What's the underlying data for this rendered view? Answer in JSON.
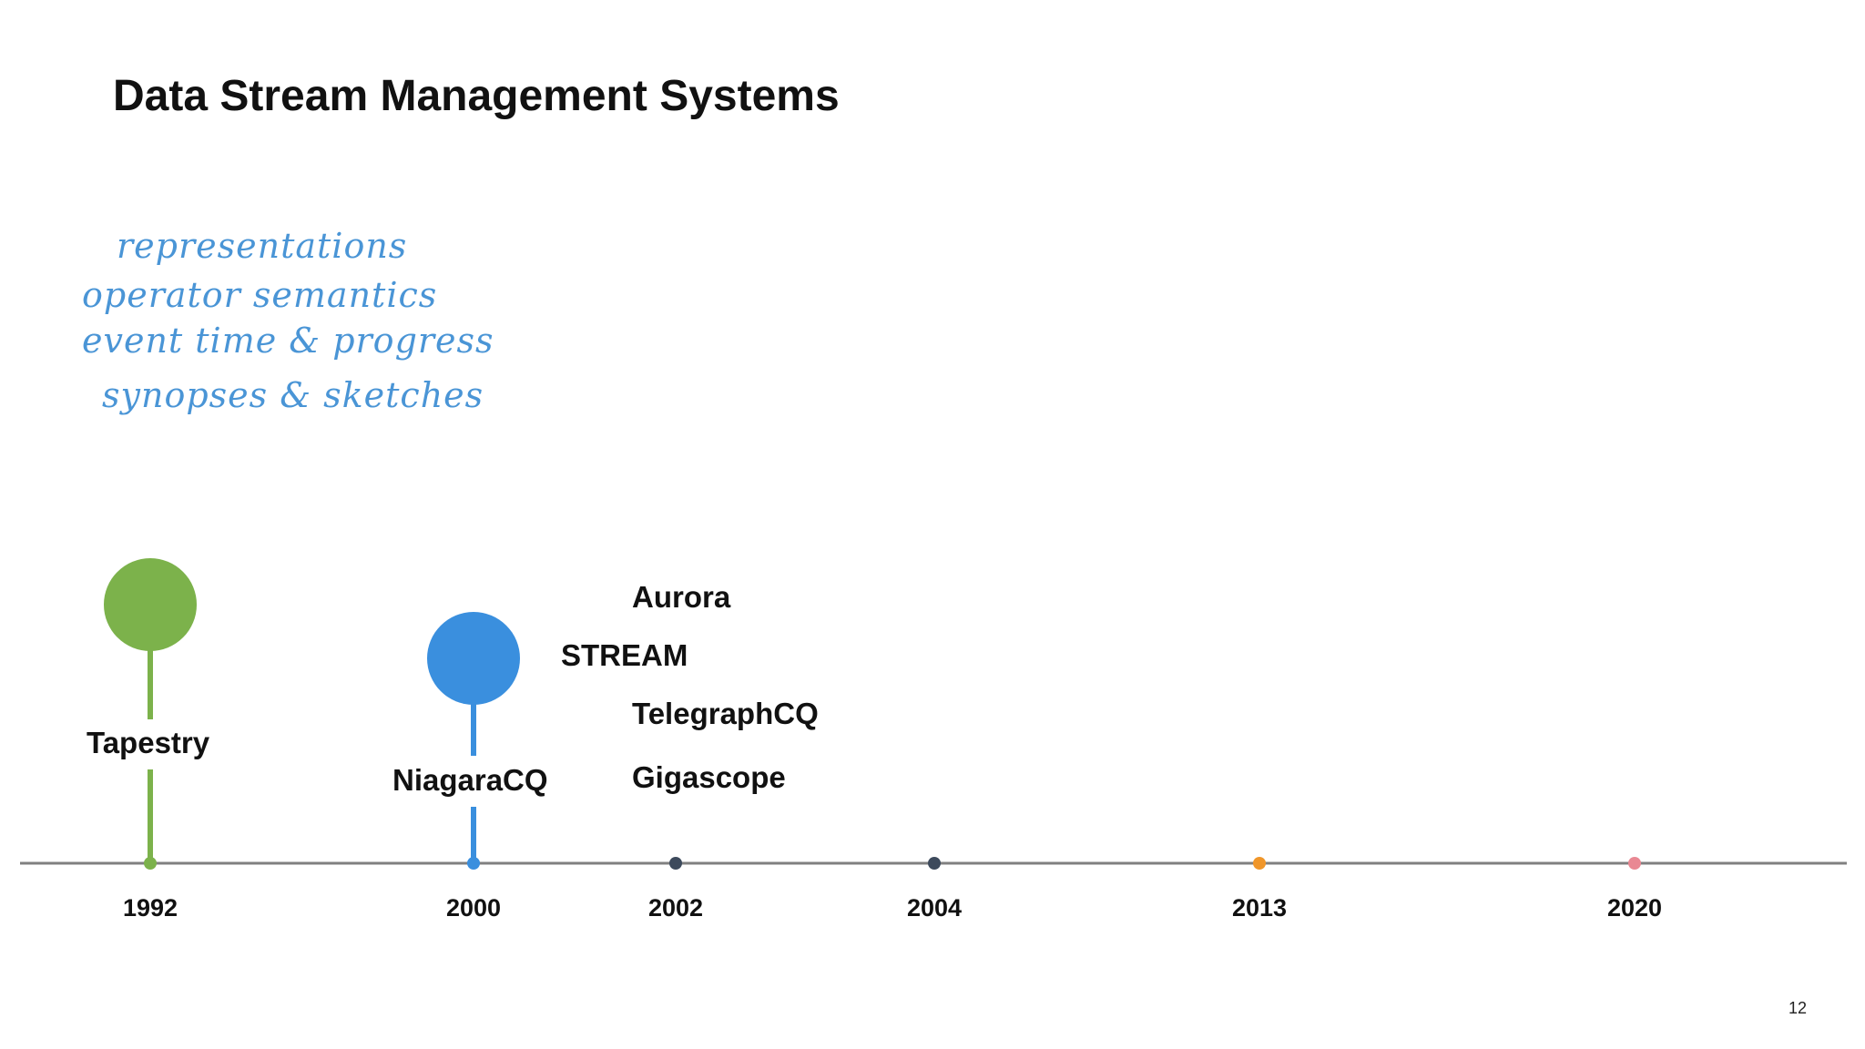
{
  "slide": {
    "title": "Data Stream Management Systems",
    "page_number": "12"
  },
  "annotations": [
    "representations",
    "operator semantics",
    "event time & progress",
    "synopses & sketches"
  ],
  "timeline": {
    "axis_color": "#808080",
    "years": [
      {
        "label": "1992",
        "color": "#7cb24b"
      },
      {
        "label": "2000",
        "color": "#3a8fde"
      },
      {
        "label": "2002",
        "color": "#3d4a5c"
      },
      {
        "label": "2004",
        "color": "#3d4a5c"
      },
      {
        "label": "2013",
        "color": "#f0962a"
      },
      {
        "label": "2020",
        "color": "#e98893"
      }
    ],
    "milestones": [
      {
        "name": "Tapestry",
        "year": "1992",
        "color": "#7cb24b"
      },
      {
        "name": "NiagaraCQ",
        "year": "2000",
        "color": "#3a8fde"
      }
    ],
    "systems": [
      "Aurora",
      "STREAM",
      "TelegraphCQ",
      "Gigascope"
    ]
  }
}
